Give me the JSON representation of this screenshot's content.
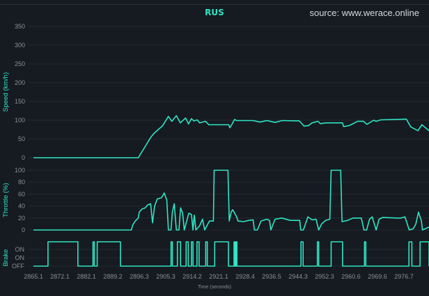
{
  "chart_data": {
    "type": "line",
    "title": "RUS",
    "source": "source: www.werace.online",
    "xlabel": "Time (seconds)",
    "x_ticks": [
      "2865.1",
      "2872.1",
      "2882.1",
      "2889.2",
      "2896.3",
      "2905.3",
      "2914.2",
      "2921.1",
      "2928.4",
      "2936.5",
      "2944.3",
      "2952.3",
      "2960.6",
      "2969.6",
      "2976.7"
    ],
    "x_tick_sample_index": [
      0,
      10,
      20,
      30,
      40,
      50,
      60,
      70,
      80,
      90,
      100,
      110,
      120,
      130,
      140
    ],
    "x_range_sample_index": [
      0,
      149.5
    ],
    "color": "#2ee6c3",
    "panels": [
      {
        "name": "speed",
        "ylabel": "Speed (km/h)",
        "ylim": [
          0,
          350
        ],
        "y_ticks": [
          "0",
          "50",
          "100",
          "150",
          "200",
          "250",
          "300",
          "350"
        ],
        "y_tick_values": [
          0,
          50,
          100,
          150,
          200,
          250,
          300,
          350
        ],
        "points": [
          [
            0,
            0
          ],
          [
            39.6,
            0
          ],
          [
            41.8,
            25
          ],
          [
            44.4,
            55
          ],
          [
            45.7,
            66
          ],
          [
            48.8,
            85
          ],
          [
            51,
            110
          ],
          [
            52.3,
            97
          ],
          [
            54,
            112
          ],
          [
            55.5,
            93
          ],
          [
            57.5,
            106
          ],
          [
            58.6,
            90
          ],
          [
            59.7,
            104
          ],
          [
            60.6,
            98
          ],
          [
            61.9,
            101
          ],
          [
            62.8,
            93
          ],
          [
            65,
            97
          ],
          [
            66.3,
            88
          ],
          [
            73.8,
            88
          ],
          [
            74.2,
            80
          ],
          [
            75.1,
            90
          ],
          [
            76,
            102
          ],
          [
            76.8,
            99
          ],
          [
            83,
            99
          ],
          [
            85.6,
            95
          ],
          [
            88.3,
            99
          ],
          [
            91.3,
            94
          ],
          [
            94,
            99
          ],
          [
            100.5,
            98
          ],
          [
            102.3,
            84
          ],
          [
            104,
            86
          ],
          [
            105.3,
            93
          ],
          [
            107.5,
            97
          ],
          [
            108.4,
            91
          ],
          [
            110.6,
            93
          ],
          [
            116.8,
            93
          ],
          [
            117.2,
            83
          ],
          [
            119.4,
            86
          ],
          [
            122.5,
            97
          ],
          [
            124.7,
            97
          ],
          [
            126,
            89
          ],
          [
            128.6,
            100
          ],
          [
            129.5,
            97
          ],
          [
            131.2,
            101
          ],
          [
            140.9,
            103
          ],
          [
            142.6,
            82
          ],
          [
            145.3,
            72
          ],
          [
            146.8,
            88
          ],
          [
            149.5,
            72
          ]
        ]
      },
      {
        "name": "throttle",
        "ylabel": "Throttle (%)",
        "ylim": [
          0,
          100
        ],
        "y_ticks": [
          "0",
          "20",
          "40",
          "60",
          "80",
          "100"
        ],
        "y_tick_values": [
          0,
          20,
          40,
          60,
          80,
          100
        ],
        "points": [
          [
            0,
            0
          ],
          [
            37,
            0
          ],
          [
            37.5,
            8
          ],
          [
            38.5,
            15
          ],
          [
            39.6,
            20
          ],
          [
            40,
            30
          ],
          [
            41,
            35
          ],
          [
            42.2,
            37
          ],
          [
            43.2,
            42
          ],
          [
            44.3,
            44
          ],
          [
            45,
            12
          ],
          [
            45.8,
            40
          ],
          [
            46.8,
            52
          ],
          [
            48.4,
            54
          ],
          [
            49.4,
            62
          ],
          [
            50.4,
            50
          ],
          [
            51,
            0
          ],
          [
            52,
            0
          ],
          [
            52.5,
            30
          ],
          [
            53.2,
            44
          ],
          [
            54,
            0
          ],
          [
            55,
            0
          ],
          [
            55.6,
            37
          ],
          [
            56.4,
            28
          ],
          [
            57,
            0
          ],
          [
            58.7,
            28
          ],
          [
            59.7,
            26
          ],
          [
            60.3,
            0
          ],
          [
            60.8,
            25
          ],
          [
            61.4,
            0
          ],
          [
            62.8,
            7
          ],
          [
            63.9,
            18
          ],
          [
            64.7,
            0
          ],
          [
            66.5,
            15
          ],
          [
            68,
            15
          ],
          [
            68.3,
            100
          ],
          [
            73.5,
            100
          ],
          [
            74,
            15
          ],
          [
            74.7,
            30
          ],
          [
            75.3,
            34
          ],
          [
            76.3,
            26
          ],
          [
            76.8,
            22
          ],
          [
            77.3,
            15
          ],
          [
            79.4,
            14
          ],
          [
            81.4,
            16
          ],
          [
            83,
            17
          ],
          [
            83.5,
            0
          ],
          [
            84.6,
            0
          ],
          [
            86,
            15
          ],
          [
            88.2,
            18
          ],
          [
            89.2,
            16
          ],
          [
            89.7,
            0
          ],
          [
            91.3,
            18
          ],
          [
            93.9,
            20
          ],
          [
            97,
            16
          ],
          [
            100.6,
            16
          ],
          [
            101,
            0
          ],
          [
            102,
            0
          ],
          [
            103.7,
            22
          ],
          [
            105.3,
            17
          ],
          [
            106.8,
            18
          ],
          [
            107.8,
            0
          ],
          [
            108.9,
            10
          ],
          [
            110.4,
            16
          ],
          [
            112,
            18
          ],
          [
            112.5,
            100
          ],
          [
            116.1,
            100
          ],
          [
            116.6,
            14
          ],
          [
            118.7,
            16
          ],
          [
            120.8,
            20
          ],
          [
            123.9,
            20
          ],
          [
            124.9,
            0
          ],
          [
            125.9,
            0
          ],
          [
            127,
            18
          ],
          [
            128,
            22
          ],
          [
            129.5,
            0
          ],
          [
            130.6,
            18
          ],
          [
            132,
            21
          ],
          [
            137.3,
            20
          ],
          [
            138.8,
            20
          ],
          [
            140.4,
            22
          ],
          [
            142,
            0
          ],
          [
            143.5,
            2
          ],
          [
            144.5,
            10
          ],
          [
            145.5,
            30
          ],
          [
            146.6,
            15
          ],
          [
            147,
            0
          ],
          [
            149.5,
            5
          ]
        ]
      },
      {
        "name": "brake",
        "ylabel": "Brake",
        "y_ticks": [
          "OFF",
          "ON",
          "ON"
        ],
        "on_intervals": [
          [
            5.5,
            16.8
          ],
          [
            22.5,
            23.0
          ],
          [
            24.1,
            32.9
          ],
          [
            52.0,
            52.5
          ],
          [
            54.4,
            55.6
          ],
          [
            57.7,
            58.5
          ],
          [
            59.7,
            60.3
          ],
          [
            61.8,
            62.6
          ],
          [
            65.1,
            65.7
          ],
          [
            68.5,
            73.7
          ],
          [
            75.8,
            76.1
          ],
          [
            76.5,
            76.9
          ],
          [
            101.1,
            101.9
          ],
          [
            107.3,
            107.8
          ],
          [
            112.5,
            116.8
          ],
          [
            125.1,
            125.6
          ],
          [
            141.9,
            143.0
          ],
          [
            146.1,
            149.5
          ]
        ]
      }
    ]
  }
}
